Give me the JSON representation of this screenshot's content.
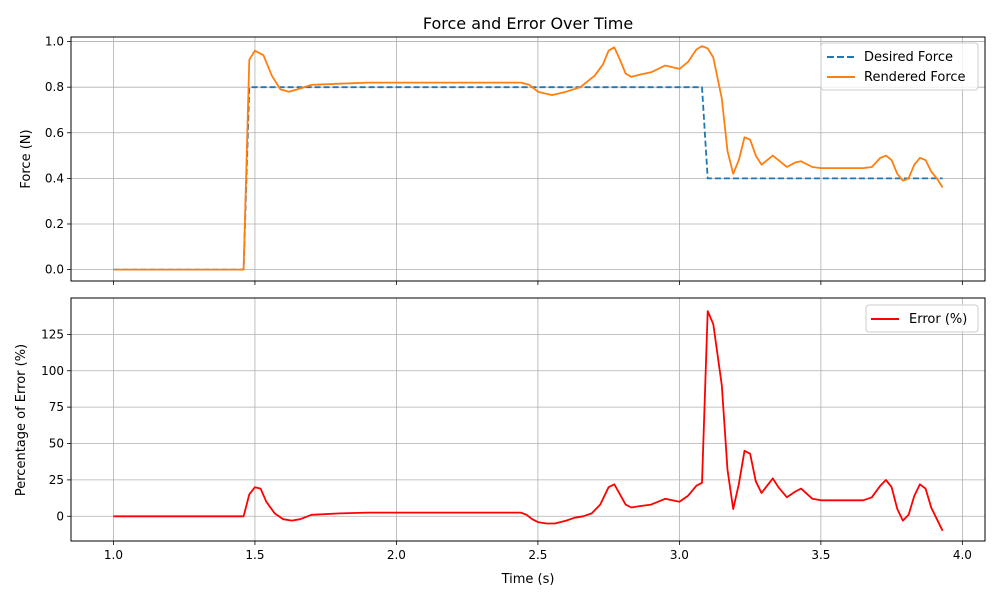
{
  "chart_data": [
    {
      "type": "line",
      "title": "Force and Error Over Time",
      "xlabel": "",
      "ylabel": "Force (N)",
      "xlim": [
        0.85,
        4.08
      ],
      "ylim": [
        -0.05,
        1.02
      ],
      "x_ticks": [
        1.0,
        1.5,
        2.0,
        2.5,
        3.0,
        3.5,
        4.0
      ],
      "y_ticks": [
        0.0,
        0.2,
        0.4,
        0.6,
        0.8,
        1.0
      ],
      "y_tick_labels": [
        "0.0",
        "0.2",
        "0.4",
        "0.6",
        "0.8",
        "1.0"
      ],
      "grid": true,
      "legend_position": "top-right",
      "series": [
        {
          "name": "Desired Force",
          "color": "#1f77b4",
          "style": "dashed",
          "x": [
            1.0,
            1.46,
            1.48,
            3.08,
            3.1,
            3.93
          ],
          "y": [
            0.0,
            0.0,
            0.8,
            0.8,
            0.4,
            0.4
          ]
        },
        {
          "name": "Rendered Force",
          "color": "#ff7f0e",
          "style": "solid",
          "x": [
            1.0,
            1.46,
            1.48,
            1.5,
            1.53,
            1.56,
            1.59,
            1.62,
            1.65,
            1.7,
            1.8,
            1.9,
            2.0,
            2.2,
            2.44,
            2.47,
            2.5,
            2.55,
            2.6,
            2.65,
            2.7,
            2.73,
            2.75,
            2.77,
            2.79,
            2.81,
            2.83,
            2.86,
            2.9,
            2.95,
            3.0,
            3.03,
            3.06,
            3.08,
            3.1,
            3.12,
            3.15,
            3.17,
            3.19,
            3.21,
            3.23,
            3.25,
            3.27,
            3.29,
            3.33,
            3.35,
            3.38,
            3.41,
            3.43,
            3.47,
            3.5,
            3.55,
            3.6,
            3.65,
            3.68,
            3.71,
            3.73,
            3.75,
            3.77,
            3.79,
            3.81,
            3.83,
            3.85,
            3.87,
            3.89,
            3.91,
            3.93
          ],
          "y": [
            0.0,
            0.0,
            0.92,
            0.96,
            0.94,
            0.85,
            0.79,
            0.78,
            0.79,
            0.81,
            0.815,
            0.82,
            0.82,
            0.82,
            0.82,
            0.81,
            0.78,
            0.765,
            0.78,
            0.8,
            0.85,
            0.9,
            0.96,
            0.975,
            0.92,
            0.86,
            0.845,
            0.855,
            0.865,
            0.895,
            0.88,
            0.91,
            0.965,
            0.98,
            0.97,
            0.93,
            0.75,
            0.52,
            0.42,
            0.48,
            0.58,
            0.57,
            0.5,
            0.46,
            0.5,
            0.48,
            0.45,
            0.47,
            0.475,
            0.45,
            0.445,
            0.445,
            0.445,
            0.445,
            0.45,
            0.49,
            0.5,
            0.48,
            0.42,
            0.39,
            0.4,
            0.46,
            0.49,
            0.48,
            0.43,
            0.4,
            0.36
          ]
        }
      ]
    },
    {
      "type": "line",
      "title": "",
      "xlabel": "Time (s)",
      "ylabel": "Percentage of Error (%)",
      "xlim": [
        0.85,
        4.08
      ],
      "ylim": [
        -17,
        150
      ],
      "x_ticks": [
        1.0,
        1.5,
        2.0,
        2.5,
        3.0,
        3.5,
        4.0
      ],
      "x_tick_labels": [
        "1.0",
        "1.5",
        "2.0",
        "2.5",
        "3.0",
        "3.5",
        "4.0"
      ],
      "y_ticks": [
        0,
        25,
        50,
        75,
        100,
        125
      ],
      "y_tick_labels": [
        "0",
        "25",
        "50",
        "75",
        "100",
        "125"
      ],
      "grid": true,
      "legend_position": "top-right",
      "series": [
        {
          "name": "Error (%)",
          "color": "#ff0000",
          "style": "solid",
          "x": [
            1.0,
            1.46,
            1.48,
            1.5,
            1.52,
            1.54,
            1.57,
            1.6,
            1.63,
            1.66,
            1.7,
            1.8,
            1.9,
            2.0,
            2.2,
            2.44,
            2.46,
            2.48,
            2.5,
            2.53,
            2.56,
            2.6,
            2.63,
            2.66,
            2.69,
            2.72,
            2.75,
            2.77,
            2.79,
            2.81,
            2.83,
            2.86,
            2.9,
            2.95,
            3.0,
            3.03,
            3.06,
            3.08,
            3.1,
            3.12,
            3.15,
            3.17,
            3.19,
            3.21,
            3.23,
            3.25,
            3.27,
            3.29,
            3.31,
            3.33,
            3.35,
            3.38,
            3.41,
            3.43,
            3.47,
            3.5,
            3.55,
            3.6,
            3.65,
            3.68,
            3.71,
            3.73,
            3.75,
            3.77,
            3.79,
            3.81,
            3.83,
            3.85,
            3.87,
            3.89,
            3.91,
            3.93
          ],
          "y": [
            0,
            0,
            15,
            20,
            19,
            10,
            2,
            -2,
            -3,
            -2,
            1,
            2,
            2.5,
            2.5,
            2.5,
            2.5,
            1,
            -2,
            -4,
            -5,
            -5,
            -3,
            -1,
            0,
            2,
            8,
            20,
            22,
            15,
            8,
            6,
            7,
            8,
            12,
            10,
            14,
            21,
            23,
            141,
            132,
            90,
            32,
            5,
            22,
            45,
            43,
            24,
            16,
            21,
            26,
            20,
            13,
            17,
            19,
            12,
            11,
            11,
            11,
            11,
            13,
            21,
            25,
            20,
            5,
            -3,
            1,
            14,
            22,
            19,
            6,
            -2,
            -10
          ]
        }
      ]
    }
  ]
}
